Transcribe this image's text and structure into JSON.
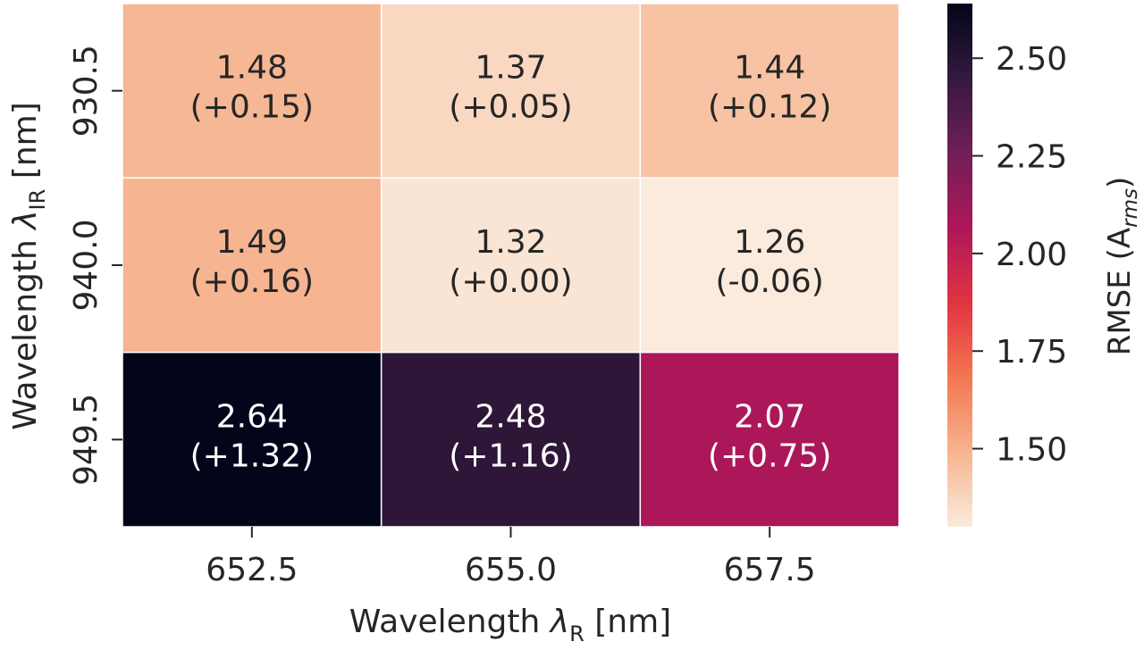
{
  "chart_data": {
    "type": "heatmap",
    "xlabel_main": "Wavelength ",
    "xlabel_symbol": "λ",
    "xlabel_sub": "R",
    "xlabel_unit": " [nm]",
    "ylabel_main": "Wavelength ",
    "ylabel_symbol": "λ",
    "ylabel_sub": "IR",
    "ylabel_unit": " [nm]",
    "colorbar_label_main": "RMSE (A",
    "colorbar_label_sub": "rms",
    "colorbar_label_close": ")",
    "x_categories": [
      "652.5",
      "655.0",
      "657.5"
    ],
    "y_categories": [
      "930.5",
      "940.0",
      "949.5"
    ],
    "values": [
      [
        1.48,
        1.37,
        1.44
      ],
      [
        1.49,
        1.32,
        1.26
      ],
      [
        2.64,
        2.48,
        2.07
      ]
    ],
    "cell_values": [
      [
        "1.48",
        "1.37",
        "1.44"
      ],
      [
        "1.49",
        "1.32",
        "1.26"
      ],
      [
        "2.64",
        "2.48",
        "2.07"
      ]
    ],
    "cell_deltas": [
      [
        "(+0.15)",
        "(+0.05)",
        "(+0.12)"
      ],
      [
        "(+0.16)",
        "(+0.00)",
        "(-0.06)"
      ],
      [
        "(+1.32)",
        "(+1.16)",
        "(+0.75)"
      ]
    ],
    "colorbar_range": [
      1.3,
      2.64
    ],
    "colorbar_ticks": [
      "2.50",
      "2.25",
      "2.00",
      "1.75",
      "1.50"
    ],
    "colorbar_tick_values": [
      2.5,
      2.25,
      2.0,
      1.75,
      1.5
    ],
    "colormap": "rocket_r",
    "colormap_stops": [
      "#faebdd",
      "#f6b48f",
      "#f37651",
      "#e13342",
      "#ad1759",
      "#701f57",
      "#35193e",
      "#03051a"
    ]
  }
}
